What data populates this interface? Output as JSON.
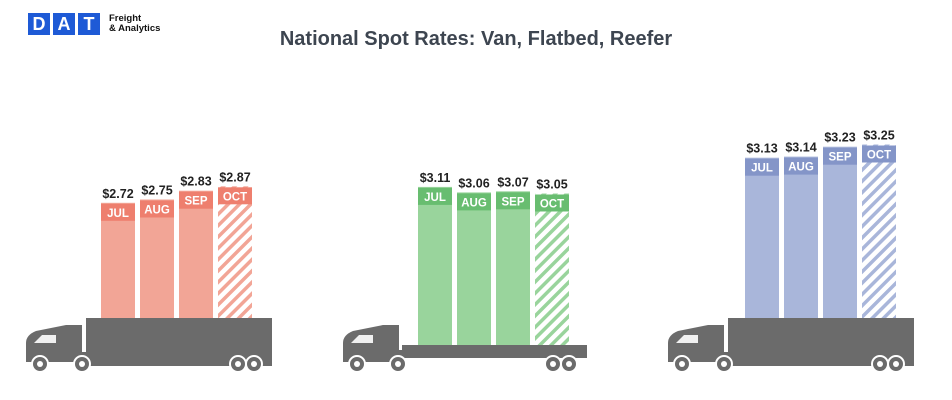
{
  "logo": {
    "letters": [
      "D",
      "A",
      "T"
    ],
    "tagline_line1": "Freight",
    "tagline_line2": "& Analytics"
  },
  "chart_data": {
    "type": "bar",
    "title": "National Spot Rates: Van, Flatbed, Reefer",
    "categories": [
      "JUL",
      "AUG",
      "SEP",
      "OCT"
    ],
    "series": [
      {
        "values": [
          2.72,
          2.75,
          2.83,
          2.87
        ],
        "labels": [
          "$2.72",
          "$2.75",
          "$2.83",
          "$2.87"
        ],
        "color": "#f2a596",
        "label_color": "#ee7f6e",
        "hatched_last": true
      },
      {
        "values": [
          3.11,
          3.06,
          3.07,
          3.05
        ],
        "labels": [
          "$3.11",
          "$3.06",
          "$3.07",
          "$3.05"
        ],
        "color": "#99d49c",
        "label_color": "#68bd70",
        "hatched_last": true
      },
      {
        "values": [
          3.13,
          3.14,
          3.23,
          3.25
        ],
        "labels": [
          "$3.13",
          "$3.14",
          "$3.23",
          "$3.25"
        ],
        "color": "#a9b6da",
        "label_color": "#8495c8",
        "hatched_last": true
      }
    ],
    "truck_color": "#6b6b6b",
    "grid": false
  }
}
